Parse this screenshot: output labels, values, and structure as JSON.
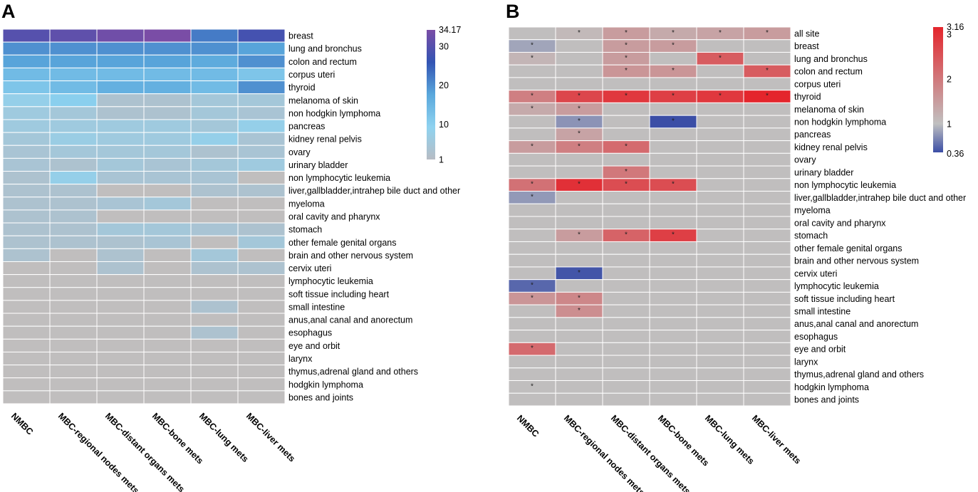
{
  "chart_data": [
    {
      "type": "heatmap",
      "panel_label": "A",
      "columns": [
        "NMBC",
        "MBC-regional nodes mets",
        "MBC-distant organs mets",
        "MBC-bone mets",
        "MBC-lung mets",
        "MBC-liver mets"
      ],
      "rows": [
        "breast",
        "lung and bronchus",
        "colon and rectum",
        "corpus uteri",
        "thyroid",
        "melanoma of skin",
        "non hodgkin lymphoma",
        "pancreas",
        "kidney renal pelvis",
        "ovary",
        "urinary bladder",
        "non lymphocytic leukemia",
        "liver,gallbladder,intrahep bile duct and other",
        "myeloma",
        "oral cavity and pharynx",
        "stomach",
        "other female genital organs",
        "brain and other nervous system",
        "cervix uteri",
        "lymphocytic leukemia",
        "soft tissue including heart",
        "small intestine",
        "anus,anal canal and anorectum",
        "esophagus",
        "eye and orbit",
        "larynx",
        "thymus,adrenal gland and others",
        "hodgkin lymphoma",
        "bones and joints"
      ],
      "values": [
        [
          30,
          31,
          33,
          34.17,
          22,
          28
        ],
        [
          20,
          20,
          20,
          20,
          20,
          18
        ],
        [
          18,
          18,
          18,
          18,
          17,
          20
        ],
        [
          14,
          14,
          14,
          14,
          14,
          12
        ],
        [
          12,
          14,
          16,
          16,
          14,
          20
        ],
        [
          8,
          10,
          3,
          3,
          5,
          5
        ],
        [
          6,
          5,
          3,
          3,
          5,
          4
        ],
        [
          6,
          6,
          6,
          6,
          5,
          8
        ],
        [
          5,
          7,
          6,
          6,
          8,
          4
        ],
        [
          4,
          5,
          5,
          5,
          3,
          4
        ],
        [
          4,
          3,
          5,
          4,
          5,
          6
        ],
        [
          3,
          8,
          4,
          4,
          4,
          null
        ],
        [
          3,
          3,
          null,
          null,
          3,
          3
        ],
        [
          3,
          3,
          4,
          5,
          null,
          null
        ],
        [
          3,
          3,
          null,
          null,
          null,
          null
        ],
        [
          3,
          3,
          5,
          5,
          4,
          3
        ],
        [
          3,
          3,
          3,
          4,
          null,
          5
        ],
        [
          3,
          null,
          3,
          null,
          5,
          null
        ],
        [
          null,
          null,
          3,
          null,
          3,
          3
        ],
        [
          null,
          null,
          null,
          null,
          null,
          null
        ],
        [
          null,
          null,
          null,
          null,
          null,
          null
        ],
        [
          null,
          null,
          null,
          null,
          3,
          null
        ],
        [
          null,
          null,
          null,
          null,
          null,
          null
        ],
        [
          null,
          null,
          null,
          null,
          3,
          null
        ],
        [
          null,
          null,
          null,
          null,
          null,
          null
        ],
        [
          null,
          null,
          null,
          null,
          null,
          null
        ],
        [
          null,
          null,
          null,
          null,
          null,
          null
        ],
        [
          null,
          null,
          null,
          null,
          null,
          null
        ],
        [
          null,
          null,
          null,
          null,
          null,
          null
        ]
      ],
      "legend": {
        "max_label": "34.17",
        "ticks": [
          30,
          20,
          10,
          1
        ],
        "min": 1,
        "max": 34.17,
        "colors": [
          "#b7bcc4",
          "#8fd3f0",
          "#5aa8dc",
          "#3354b3",
          "#7a4da6"
        ]
      },
      "missing_color": "#c0bebe"
    },
    {
      "type": "heatmap",
      "panel_label": "B",
      "columns": [
        "NMBC",
        "MBC-regional nodes mets",
        "MBC-distant organs mets",
        "MBC-bone mets",
        "MBC-lung mets",
        "MBC-liver mets"
      ],
      "rows": [
        "all site",
        "breast",
        "lung and bronchus",
        "colon and rectum",
        "corpus uteri",
        "thyroid",
        "melanoma of skin",
        "non hodgkin lymphoma",
        "pancreas",
        "kidney renal pelvis",
        "ovary",
        "urinary bladder",
        "non lymphocytic leukemia",
        "liver,gallbladder,intrahep bile duct and other",
        "myeloma",
        "oral cavity and pharynx",
        "stomach",
        "other female genital organs",
        "brain and other nervous system",
        "cervix uteri",
        "lymphocytic leukemia",
        "soft tissue including heart",
        "small intestine",
        "anus,anal canal and anorectum",
        "esophagus",
        "eye and orbit",
        "larynx",
        "thymus,adrenal gland and others",
        "hodgkin lymphoma",
        "bones and joints"
      ],
      "values": [
        [
          null,
          1.1,
          1.5,
          1.3,
          1.4,
          1.5
        ],
        [
          0.85,
          null,
          1.5,
          1.5,
          null,
          null
        ],
        [
          1.15,
          null,
          1.5,
          null,
          2.4,
          null
        ],
        [
          null,
          null,
          1.6,
          1.6,
          null,
          2.4
        ],
        [
          null,
          null,
          null,
          null,
          null,
          null
        ],
        [
          1.9,
          2.7,
          2.9,
          2.8,
          2.9,
          3.16
        ],
        [
          1.3,
          1.5,
          null,
          null,
          null,
          null
        ],
        [
          null,
          0.75,
          null,
          0.36,
          null,
          null
        ],
        [
          null,
          1.4,
          null,
          null,
          null,
          null
        ],
        [
          1.5,
          1.9,
          2.2,
          null,
          null,
          null
        ],
        [
          null,
          null,
          null,
          null,
          null,
          null
        ],
        [
          null,
          null,
          2.0,
          null,
          null,
          null
        ],
        [
          2.1,
          3.0,
          2.6,
          2.6,
          null,
          null
        ],
        [
          0.78,
          null,
          null,
          null,
          null,
          null
        ],
        [
          null,
          null,
          null,
          null,
          null,
          null
        ],
        [
          null,
          null,
          null,
          null,
          null,
          null
        ],
        [
          null,
          1.5,
          2.3,
          2.8,
          null,
          null
        ],
        [
          null,
          null,
          null,
          null,
          null,
          null
        ],
        [
          null,
          null,
          null,
          null,
          null,
          null
        ],
        [
          null,
          0.4,
          null,
          null,
          null,
          null
        ],
        [
          0.5,
          null,
          null,
          null,
          null,
          null
        ],
        [
          1.6,
          1.8,
          null,
          null,
          null,
          null
        ],
        [
          null,
          1.7,
          null,
          null,
          null,
          null
        ],
        [
          null,
          null,
          null,
          null,
          null,
          null
        ],
        [
          null,
          null,
          null,
          null,
          null,
          null
        ],
        [
          2.2,
          null,
          null,
          null,
          null,
          null
        ],
        [
          null,
          null,
          null,
          null,
          null,
          null
        ],
        [
          null,
          null,
          null,
          null,
          null,
          null
        ],
        [
          null,
          null,
          null,
          null,
          null,
          null
        ],
        [
          null,
          null,
          null,
          null,
          null,
          null
        ]
      ],
      "significant": [
        [
          0,
          1,
          1,
          1,
          1,
          1
        ],
        [
          1,
          0,
          1,
          1,
          0,
          0
        ],
        [
          1,
          0,
          1,
          0,
          1,
          0
        ],
        [
          0,
          0,
          1,
          1,
          0,
          1
        ],
        [
          0,
          0,
          0,
          0,
          0,
          0
        ],
        [
          1,
          1,
          1,
          1,
          1,
          1
        ],
        [
          1,
          1,
          0,
          0,
          0,
          0
        ],
        [
          0,
          1,
          0,
          1,
          0,
          0
        ],
        [
          0,
          1,
          0,
          0,
          0,
          0
        ],
        [
          1,
          1,
          1,
          0,
          0,
          0
        ],
        [
          0,
          0,
          0,
          0,
          0,
          0
        ],
        [
          0,
          0,
          1,
          0,
          0,
          0
        ],
        [
          1,
          1,
          1,
          1,
          0,
          0
        ],
        [
          1,
          0,
          0,
          0,
          0,
          0
        ],
        [
          0,
          0,
          0,
          0,
          0,
          0
        ],
        [
          0,
          0,
          0,
          0,
          0,
          0
        ],
        [
          0,
          1,
          1,
          1,
          0,
          0
        ],
        [
          0,
          0,
          0,
          0,
          0,
          0
        ],
        [
          0,
          0,
          0,
          0,
          0,
          0
        ],
        [
          0,
          1,
          0,
          0,
          0,
          0
        ],
        [
          1,
          0,
          0,
          0,
          0,
          0
        ],
        [
          1,
          1,
          0,
          0,
          0,
          0
        ],
        [
          0,
          1,
          0,
          0,
          0,
          0
        ],
        [
          0,
          0,
          0,
          0,
          0,
          0
        ],
        [
          0,
          0,
          0,
          0,
          0,
          0
        ],
        [
          1,
          0,
          0,
          0,
          0,
          0
        ],
        [
          0,
          0,
          0,
          0,
          0,
          0
        ],
        [
          0,
          0,
          0,
          0,
          0,
          0
        ],
        [
          1,
          0,
          0,
          0,
          0,
          0
        ],
        [
          0,
          0,
          0,
          0,
          0,
          0
        ]
      ],
      "star_symbol": "*",
      "legend": {
        "max_label": "3.16",
        "min_label": "0.36",
        "ticks": [
          3,
          2,
          1
        ],
        "min": 0.36,
        "max": 3.16,
        "mid": 1,
        "colors": [
          "#3b4ea6",
          "#c0c0c0",
          "#e4252c"
        ]
      },
      "missing_color": "#c0bebe"
    }
  ]
}
